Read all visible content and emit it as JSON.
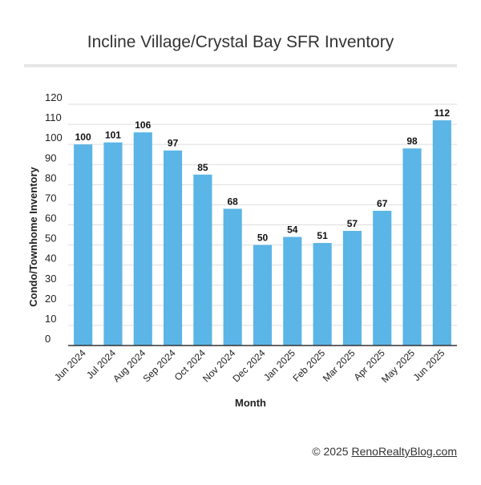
{
  "chart_data": {
    "type": "bar",
    "title": "Incline Village/Crystal Bay SFR Inventory",
    "xlabel": "Month",
    "ylabel": "Condo/Townhome Inventory",
    "categories": [
      "Jun 2024",
      "Jul 2024",
      "Aug 2024",
      "Sep 2024",
      "Oct 2024",
      "Nov 2024",
      "Dec 2024",
      "Jan 2025",
      "Feb 2025",
      "Mar 2025",
      "Apr 2025",
      "May 2025",
      "Jun 2025"
    ],
    "values": [
      100,
      101,
      106,
      97,
      85,
      68,
      50,
      54,
      51,
      57,
      67,
      98,
      112
    ],
    "ylim": [
      0,
      120
    ],
    "yticks": [
      0,
      10,
      20,
      30,
      40,
      50,
      60,
      70,
      80,
      90,
      100,
      110,
      120
    ],
    "grid": true,
    "bar_color": "#5bb5e6",
    "data_labels": true
  },
  "credit": {
    "prefix": "© 2025 ",
    "link": "RenoRealtyBlog.com"
  }
}
